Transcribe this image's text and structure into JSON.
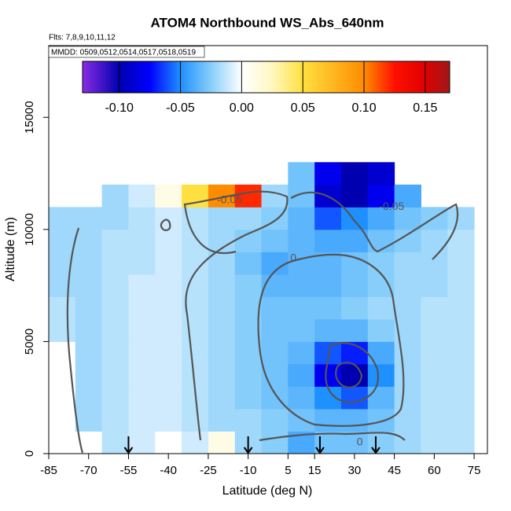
{
  "chart_data": {
    "type": "heatmap",
    "title": "ATOM4 Northbound WS_Abs_640nm",
    "subtitle": "Flts: 7,8,9,10,11,12",
    "legend_text": "MMDD: 0509,0512,0514,0517,0518,0519",
    "xlabel": "Latitude (deg N)",
    "ylabel": "Altitude (m)",
    "xlim": [
      -85,
      80
    ],
    "ylim": [
      0,
      18200
    ],
    "xticks": [
      -85,
      -70,
      -55,
      -40,
      -25,
      -10,
      5,
      15,
      30,
      45,
      60,
      75
    ],
    "yticks": [
      0,
      5000,
      10000,
      15000
    ],
    "x": [
      -80,
      -70,
      -60,
      -50,
      -40,
      -30,
      -20,
      -10,
      0,
      10,
      20,
      30,
      40,
      50,
      60,
      70
    ],
    "y": [
      500,
      1500,
      2500,
      3500,
      4500,
      5500,
      6500,
      7500,
      8500,
      9500,
      10500,
      11500,
      12500
    ],
    "z": [
      [
        null,
        null,
        -0.015,
        -0.01,
        0.0,
        -0.01,
        0.01,
        -0.02,
        -0.025,
        -0.04,
        -0.03,
        -0.03,
        -0.025,
        -0.02,
        -0.015,
        -0.015
      ],
      [
        null,
        -0.02,
        -0.015,
        -0.01,
        -0.01,
        -0.015,
        -0.02,
        -0.02,
        -0.025,
        -0.03,
        -0.035,
        -0.035,
        -0.03,
        -0.02,
        -0.015,
        -0.015
      ],
      [
        null,
        -0.02,
        -0.015,
        -0.01,
        -0.01,
        -0.015,
        -0.02,
        -0.025,
        -0.03,
        -0.035,
        -0.05,
        -0.06,
        -0.035,
        -0.02,
        -0.015,
        -0.015
      ],
      [
        null,
        -0.02,
        -0.015,
        -0.01,
        -0.01,
        -0.015,
        -0.02,
        -0.025,
        -0.03,
        -0.04,
        -0.08,
        -0.1,
        -0.05,
        -0.02,
        -0.015,
        -0.015
      ],
      [
        null,
        -0.02,
        -0.015,
        -0.01,
        -0.01,
        -0.015,
        -0.02,
        -0.025,
        -0.03,
        -0.035,
        -0.06,
        -0.07,
        -0.04,
        -0.02,
        -0.015,
        -0.015
      ],
      [
        -0.015,
        -0.02,
        -0.015,
        -0.01,
        -0.01,
        -0.015,
        -0.02,
        -0.025,
        -0.03,
        -0.03,
        -0.035,
        -0.035,
        -0.025,
        -0.02,
        -0.015,
        -0.015
      ],
      [
        -0.015,
        -0.02,
        -0.015,
        -0.01,
        -0.01,
        -0.015,
        -0.02,
        -0.025,
        -0.03,
        -0.03,
        -0.03,
        -0.025,
        -0.02,
        -0.02,
        -0.015,
        -0.015
      ],
      [
        -0.02,
        -0.02,
        -0.015,
        -0.01,
        -0.01,
        -0.015,
        -0.02,
        -0.025,
        -0.035,
        -0.035,
        -0.035,
        -0.03,
        -0.025,
        -0.02,
        -0.02,
        -0.015
      ],
      [
        -0.02,
        -0.02,
        -0.015,
        -0.015,
        -0.01,
        -0.015,
        -0.02,
        -0.03,
        -0.04,
        -0.035,
        -0.035,
        -0.03,
        -0.025,
        -0.02,
        -0.02,
        -0.015
      ],
      [
        -0.02,
        -0.02,
        -0.015,
        -0.015,
        -0.01,
        -0.015,
        -0.02,
        -0.025,
        -0.03,
        -0.035,
        -0.04,
        -0.04,
        -0.03,
        -0.025,
        -0.02,
        -0.015
      ],
      [
        -0.02,
        -0.02,
        -0.02,
        -0.015,
        -0.01,
        -0.015,
        -0.02,
        -0.02,
        -0.025,
        -0.035,
        -0.06,
        -0.05,
        -0.04,
        -0.03,
        -0.025,
        -0.02
      ],
      [
        null,
        null,
        -0.02,
        -0.01,
        0.01,
        0.05,
        0.1,
        0.12,
        -0.02,
        -0.03,
        -0.09,
        -0.1,
        -0.08,
        -0.04,
        null,
        null
      ],
      [
        null,
        null,
        null,
        null,
        null,
        null,
        null,
        null,
        null,
        -0.03,
        -0.08,
        -0.1,
        -0.09,
        null,
        null,
        null
      ]
    ],
    "colorbar": {
      "lim": [
        -0.13,
        0.17
      ],
      "ticks": [
        {
          "value": -0.1,
          "label": "-0.10"
        },
        -0.05,
        {
          "value": 0,
          "label": "0.00"
        },
        0.05,
        {
          "value": 0.1,
          "label": "0.10"
        },
        0.15
      ],
      "stops": [
        [
          -0.13,
          "#8a2be2"
        ],
        [
          -0.1,
          "#0000b0"
        ],
        [
          -0.075,
          "#0000ff"
        ],
        [
          -0.05,
          "#1e90ff"
        ],
        [
          -0.025,
          "#87cefa"
        ],
        [
          0,
          "#ffffff"
        ],
        [
          0.025,
          "#fff8c0"
        ],
        [
          0.05,
          "#ffe040"
        ],
        [
          0.1,
          "#ff8c00"
        ],
        [
          0.125,
          "#ff1000"
        ],
        [
          0.15,
          "#e00000"
        ],
        [
          0.17,
          "#a01818"
        ]
      ]
    },
    "arrows": [
      -55,
      -10,
      17,
      38
    ],
    "contour_labels": [
      {
        "label": "-0.05",
        "x": -17,
        "y": 11300
      },
      {
        "label": "0",
        "x": 7,
        "y": 8700
      },
      {
        "label": "-0.05",
        "x": 44,
        "y": 11000
      },
      {
        "label": "0",
        "x": 32,
        "y": 500
      }
    ]
  }
}
